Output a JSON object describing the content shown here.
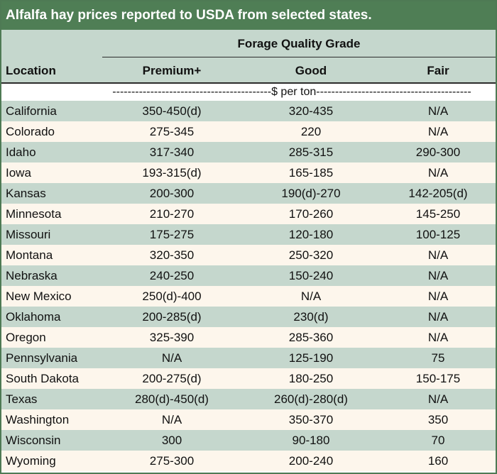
{
  "title": "Alfalfa hay prices reported to USDA from selected states.",
  "group_header": "Forage Quality Grade",
  "columns": {
    "location": "Location",
    "premium": "Premium+",
    "good": "Good",
    "fair": "Fair"
  },
  "unit_label": "------------------------------------------$ per ton-----------------------------------------",
  "rows": [
    {
      "location": "California",
      "premium": "350-450(d)",
      "good": "320-435",
      "fair": "N/A"
    },
    {
      "location": "Colorado",
      "premium": "275-345",
      "good": "220",
      "fair": "N/A"
    },
    {
      "location": "Idaho",
      "premium": "317-340",
      "good": "285-315",
      "fair": "290-300"
    },
    {
      "location": "Iowa",
      "premium": "193-315(d)",
      "good": "165-185",
      "fair": "N/A"
    },
    {
      "location": "Kansas",
      "premium": "200-300",
      "good": "190(d)-270",
      "fair": "142-205(d)"
    },
    {
      "location": "Minnesota",
      "premium": "210-270",
      "good": "170-260",
      "fair": "145-250"
    },
    {
      "location": "Missouri",
      "premium": "175-275",
      "good": "120-180",
      "fair": "100-125"
    },
    {
      "location": "Montana",
      "premium": "320-350",
      "good": "250-320",
      "fair": "N/A"
    },
    {
      "location": "Nebraska",
      "premium": "240-250",
      "good": "150-240",
      "fair": "N/A"
    },
    {
      "location": "New Mexico",
      "premium": "250(d)-400",
      "good": "N/A",
      "fair": "N/A"
    },
    {
      "location": "Oklahoma",
      "premium": "200-285(d)",
      "good": "230(d)",
      "fair": "N/A"
    },
    {
      "location": "Oregon",
      "premium": "325-390",
      "good": "285-360",
      "fair": "N/A"
    },
    {
      "location": "Pennsylvania",
      "premium": "N/A",
      "good": "125-190",
      "fair": "75"
    },
    {
      "location": "South Dakota",
      "premium": "200-275(d)",
      "good": "180-250",
      "fair": "150-175"
    },
    {
      "location": "Texas",
      "premium": "280(d)-450(d)",
      "good": "260(d)-280(d)",
      "fair": "N/A"
    },
    {
      "location": "Washington",
      "premium": "N/A",
      "good": "350-370",
      "fair": "350"
    },
    {
      "location": "Wisconsin",
      "premium": "300",
      "good": "90-180",
      "fair": "70"
    },
    {
      "location": "Wyoming",
      "premium": "275-300",
      "good": "200-240",
      "fair": "160"
    }
  ],
  "colors": {
    "title_bg": "#4f7e55",
    "band_green": "#c5d7cd",
    "band_cream": "#fdf6ec"
  }
}
